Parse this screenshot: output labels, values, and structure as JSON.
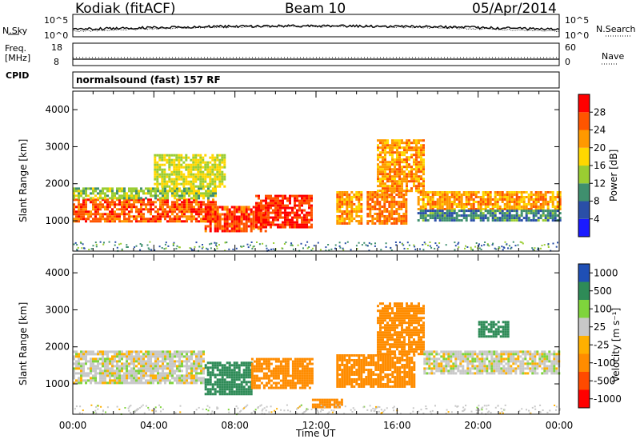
{
  "header": {
    "station": "Kodiak (fitACF)",
    "beam": "Beam 10",
    "date": "05/Apr/2014"
  },
  "top_panels": {
    "nsky_label": "N.Sky",
    "nsky_ticks": [
      "10^5",
      "10^0"
    ],
    "nsearch_label": "N.Search",
    "nsearch_ticks": [
      "10^5",
      "10^0"
    ],
    "freq_label_line1": "Freq.",
    "freq_label_line2": "[MHz]",
    "freq_ticks": [
      "18",
      "8"
    ],
    "nave_label": "Nave",
    "nave_ticks": [
      "60",
      "0"
    ],
    "cpid_label": "CPID",
    "cpid_text": "normalsound (fast) 157 RF"
  },
  "colors": {
    "power_scale": [
      "#1a1aff",
      "#2a4fa8",
      "#3f8f6e",
      "#9acd32",
      "#ffd700",
      "#ff9900",
      "#ff5500",
      "#ff0000"
    ],
    "velocity_scale": [
      "#ff0000",
      "#ff4a00",
      "#ff8c00",
      "#ffb000",
      "#c8c8c8",
      "#7fd43c",
      "#2e8b57",
      "#1f4fb5"
    ]
  },
  "chart_data": [
    {
      "type": "heatmap",
      "panel": "power",
      "ylabel": "Slant Range [km]",
      "yticks": [
        "1000",
        "2000",
        "3000",
        "4000"
      ],
      "ylim": [
        180,
        4500
      ],
      "xlim": [
        "00:00",
        "24:00"
      ],
      "colorbar_label": "Power [dB]",
      "colorbar_ticks": [
        "4",
        "8",
        "12",
        "16",
        "20",
        "24",
        "28"
      ],
      "colorbar_range": [
        0,
        32
      ],
      "regions": [
        {
          "t0": 0.0,
          "t1": 7.0,
          "r0": 1000,
          "r1": 1600,
          "value": 26
        },
        {
          "t0": 0.0,
          "t1": 7.0,
          "r0": 1600,
          "r1": 1900,
          "value": 14
        },
        {
          "t0": 4.0,
          "t1": 7.5,
          "r0": 1900,
          "r1": 2800,
          "value": 16
        },
        {
          "t0": 6.5,
          "t1": 9.5,
          "r0": 700,
          "r1": 1400,
          "value": 27
        },
        {
          "t0": 9.0,
          "t1": 11.8,
          "r0": 800,
          "r1": 1700,
          "value": 28
        },
        {
          "t0": 13.0,
          "t1": 14.2,
          "r0": 900,
          "r1": 1800,
          "value": 22
        },
        {
          "t0": 14.5,
          "t1": 16.5,
          "r0": 900,
          "r1": 1800,
          "value": 24
        },
        {
          "t0": 15.0,
          "t1": 17.3,
          "r0": 1800,
          "r1": 3200,
          "value": 22
        },
        {
          "t0": 17.0,
          "t1": 24.0,
          "r0": 1300,
          "r1": 1800,
          "value": 22
        },
        {
          "t0": 17.0,
          "t1": 24.0,
          "r0": 1000,
          "r1": 1300,
          "value": 9
        }
      ]
    },
    {
      "type": "heatmap",
      "panel": "velocity",
      "ylabel": "Slant Range [km]",
      "yticks": [
        "1000",
        "2000",
        "3000",
        "4000"
      ],
      "ylim": [
        180,
        4500
      ],
      "xlim": [
        "00:00",
        "24:00"
      ],
      "xlabel": "Time UT",
      "xticks": [
        "00:00",
        "04:00",
        "08:00",
        "12:00",
        "16:00",
        "20:00",
        "00:00"
      ],
      "colorbar_label": "Velocity [m s⁻¹]",
      "colorbar_ticks": [
        "-1000",
        "-500",
        "-100",
        "-25",
        "25",
        "100",
        "500",
        "1000"
      ],
      "regions": [
        {
          "t0": 0.0,
          "t1": 6.5,
          "r0": 1000,
          "r1": 1900,
          "value": 0
        },
        {
          "t0": 6.5,
          "t1": 8.8,
          "r0": 700,
          "r1": 1600,
          "value": 150
        },
        {
          "t0": 8.8,
          "t1": 11.8,
          "r0": 900,
          "r1": 1700,
          "value": -200
        },
        {
          "t0": 11.8,
          "t1": 13.3,
          "r0": 400,
          "r1": 600,
          "value": -300
        },
        {
          "t0": 13.0,
          "t1": 16.8,
          "r0": 900,
          "r1": 1800,
          "value": -250
        },
        {
          "t0": 15.0,
          "t1": 17.3,
          "r0": 1800,
          "r1": 3200,
          "value": -300
        },
        {
          "t0": 17.3,
          "t1": 24.0,
          "r0": 1300,
          "r1": 1900,
          "value": 0
        },
        {
          "t0": 20.0,
          "t1": 21.5,
          "r0": 2300,
          "r1": 2700,
          "value": 150
        }
      ]
    }
  ]
}
